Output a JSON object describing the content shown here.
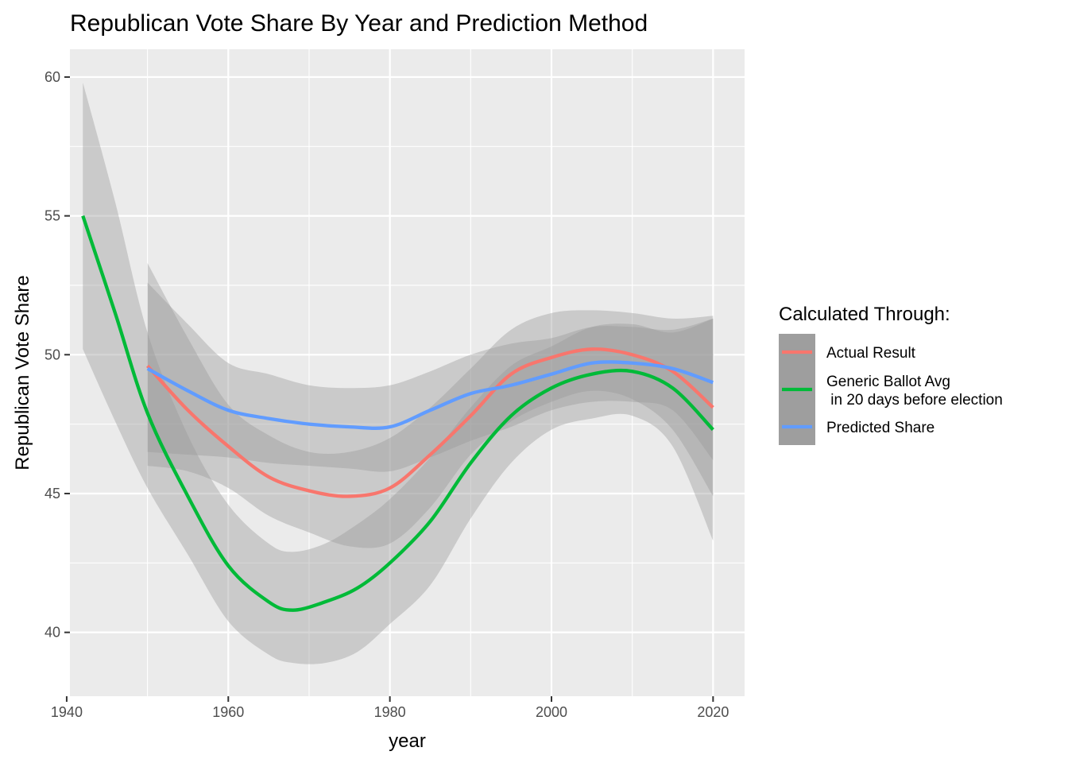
{
  "chart_data": {
    "type": "line",
    "title": "Republican Vote Share By Year and Prediction Method",
    "xlabel": "year",
    "ylabel": "Republican Vote Share",
    "xlim": [
      1940.4,
      2023.9
    ],
    "ylim": [
      37.7,
      61.0
    ],
    "x_ticks": [
      1940,
      1960,
      1980,
      2000,
      2020
    ],
    "x_tick_labels": [
      "1940",
      "1960",
      "1980",
      "2000",
      "2020"
    ],
    "y_ticks": [
      40,
      45,
      50,
      55,
      60
    ],
    "y_tick_labels": [
      "40",
      "45",
      "50",
      "55",
      "60"
    ],
    "grid": true,
    "legend": {
      "title": "Calculated Through:",
      "position": "right",
      "entries": [
        {
          "label": "Actual Result",
          "color": "#F8766D"
        },
        {
          "label": "Generic Ballot Avg\n in 20 days before election",
          "label_lines": [
            "Generic Ballot Avg",
            " in 20 days before election"
          ],
          "color": "#00BA38"
        },
        {
          "label": "Predicted Share",
          "color": "#619CFF"
        }
      ]
    },
    "series": [
      {
        "name": "Actual Result",
        "color": "#F8766D",
        "x": [
          1950,
          1955,
          1960,
          1965,
          1970,
          1975,
          1980,
          1985,
          1990,
          1995,
          2000,
          2005,
          2010,
          2015,
          2020
        ],
        "y": [
          49.6,
          48.0,
          46.7,
          45.6,
          45.1,
          44.9,
          45.2,
          46.4,
          47.8,
          49.3,
          49.9,
          50.2,
          50.0,
          49.4,
          48.1
        ],
        "lower": [
          46.0,
          45.8,
          45.2,
          44.2,
          43.6,
          43.1,
          43.2,
          44.5,
          46.4,
          47.6,
          48.3,
          48.7,
          48.4,
          47.3,
          44.9
        ],
        "upper": [
          53.3,
          50.6,
          48.2,
          47.1,
          46.5,
          46.5,
          47.0,
          48.1,
          49.5,
          50.9,
          51.5,
          51.6,
          51.5,
          51.3,
          51.4
        ]
      },
      {
        "name": "Generic Ballot Avg\n in 20 days before election",
        "color": "#00BA38",
        "x": [
          1942,
          1946,
          1950,
          1955,
          1960,
          1965,
          1968,
          1972,
          1976,
          1980,
          1985,
          1990,
          1995,
          2000,
          2005,
          2010,
          2015,
          2020
        ],
        "y": [
          55.0,
          51.5,
          47.9,
          44.9,
          42.4,
          41.1,
          40.8,
          41.1,
          41.6,
          42.5,
          44.0,
          46.1,
          47.8,
          48.8,
          49.3,
          49.4,
          48.8,
          47.3
        ],
        "lower": [
          50.2,
          47.6,
          45.2,
          42.8,
          40.4,
          39.2,
          38.9,
          38.9,
          39.3,
          40.3,
          41.7,
          44.1,
          46.1,
          47.3,
          47.7,
          47.8,
          46.7,
          43.3
        ],
        "upper": [
          59.8,
          55.5,
          50.8,
          47.1,
          44.6,
          43.2,
          42.9,
          43.2,
          43.9,
          44.8,
          46.3,
          48.1,
          49.6,
          50.3,
          51.0,
          51.1,
          50.8,
          51.3
        ]
      },
      {
        "name": "Predicted Share",
        "color": "#619CFF",
        "x": [
          1950,
          1955,
          1960,
          1965,
          1970,
          1975,
          1980,
          1985,
          1990,
          1995,
          2000,
          2005,
          2010,
          2015,
          2020
        ],
        "y": [
          49.5,
          48.7,
          48.0,
          47.7,
          47.5,
          47.4,
          47.4,
          48.0,
          48.6,
          48.9,
          49.3,
          49.7,
          49.7,
          49.5,
          49.0
        ],
        "lower": [
          46.5,
          46.4,
          46.3,
          46.1,
          46.0,
          45.9,
          45.8,
          46.3,
          46.9,
          47.4,
          48.0,
          48.3,
          48.3,
          48.0,
          46.2
        ],
        "upper": [
          52.6,
          51.1,
          49.7,
          49.3,
          48.9,
          48.8,
          48.9,
          49.4,
          50.0,
          50.4,
          50.6,
          51.0,
          51.0,
          50.9,
          51.3
        ]
      }
    ]
  }
}
